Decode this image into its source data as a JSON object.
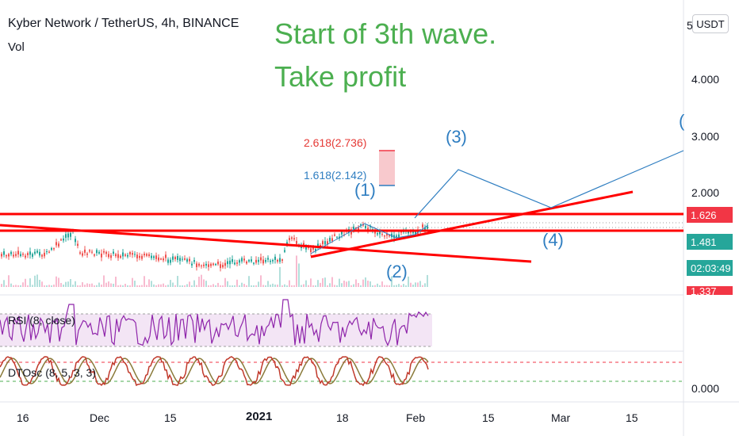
{
  "header": {
    "title": "Kyber Network / TetherUS, 4h, BINANCE",
    "volume_label": "Vol"
  },
  "annotation": {
    "line1": "Start of 3th wave.",
    "line2": "Take profit"
  },
  "currency_button": "USDT",
  "price_axis": {
    "ticks": [
      "4.000",
      "3.000",
      "2.000"
    ],
    "top_partial": "5",
    "osc_tick": "0.000"
  },
  "price_tags": [
    {
      "label": "1.626",
      "color": "#f23645"
    },
    {
      "label": "1.481",
      "color": "#26a69a"
    },
    {
      "label": "02:03:49",
      "color": "#26a69a"
    },
    {
      "label": "1.337",
      "color": "#f23645"
    }
  ],
  "fib_labels": {
    "upper": "2.618(2.736)",
    "lower": "1.618(2.142)"
  },
  "wave_labels": [
    "(1)",
    "(2)",
    "(3)",
    "(4)",
    "("
  ],
  "x_axis": [
    "16",
    "Dec",
    "15",
    "2021",
    "18",
    "Feb",
    "15",
    "Mar",
    "15"
  ],
  "indicators": {
    "rsi": "RSI (8, close)",
    "dtosc": "DTOsc (8, 5, 3, 3)"
  },
  "colors": {
    "annotation": "#4caf50",
    "wave": "#2f7ec1",
    "trendline": "#ff0000",
    "rsi": "#8e24aa",
    "rsi_band": "#f3e5f5",
    "dtosc_fast": "#c0392b",
    "dtosc_slow": "#8a7a3a"
  }
}
